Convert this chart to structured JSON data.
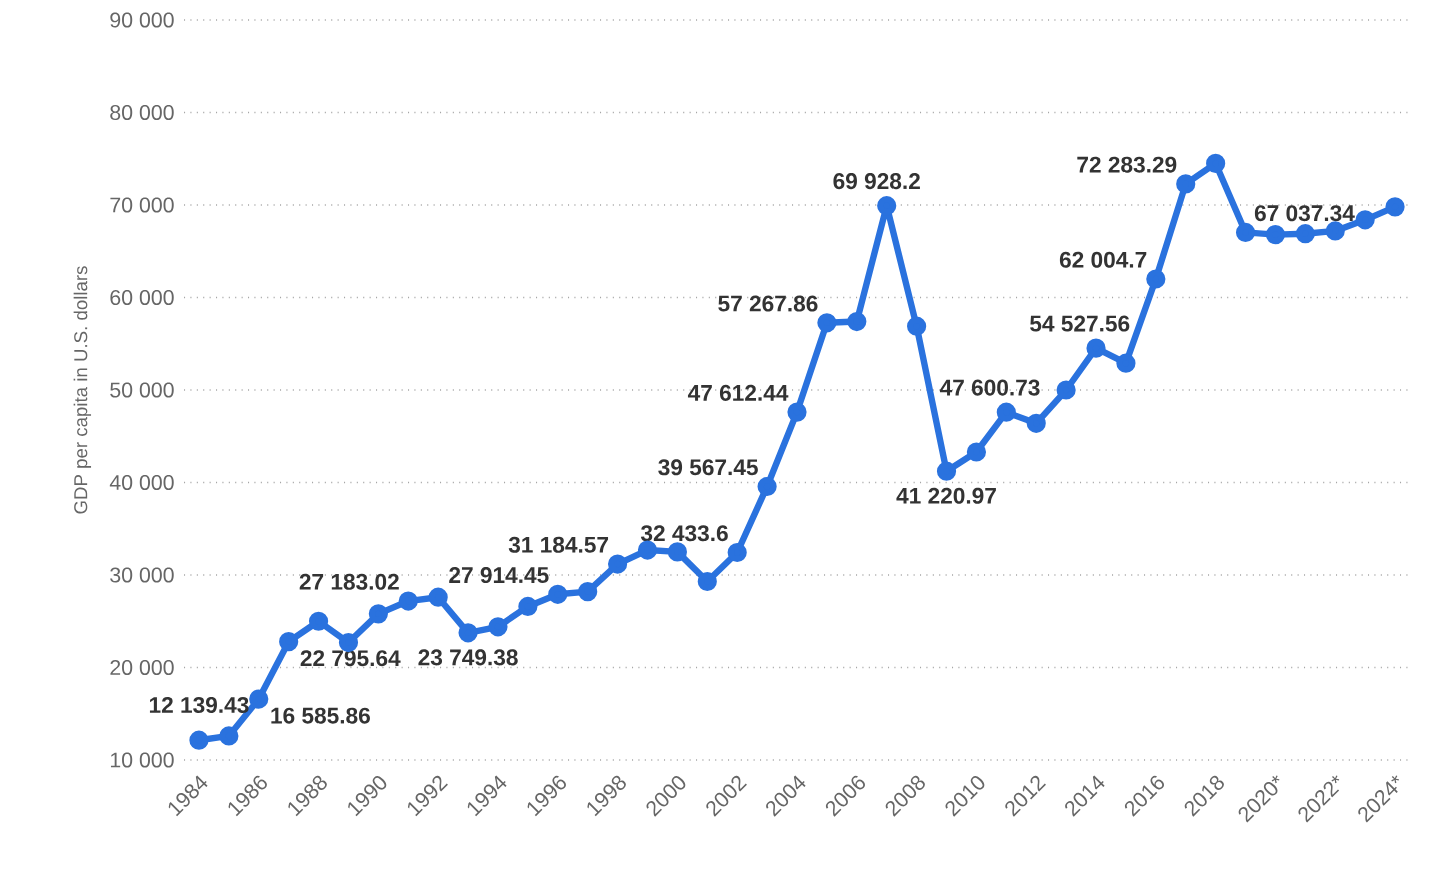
{
  "chart_data": {
    "type": "line",
    "ylabel": "GDP per capita in U.S. dollars",
    "x": [
      1984,
      1985,
      1986,
      1987,
      1988,
      1989,
      1990,
      1991,
      1992,
      1993,
      1994,
      1995,
      1996,
      1997,
      1998,
      1999,
      2000,
      2001,
      2002,
      2003,
      2004,
      2005,
      2006,
      2007,
      2008,
      2009,
      2010,
      2011,
      2012,
      2013,
      2014,
      2015,
      2016,
      2017,
      2018,
      2019,
      2020,
      2021,
      2022,
      2023,
      2024
    ],
    "series": [
      {
        "color": "#2a72de",
        "values": [
          12139.43,
          12600,
          16585.86,
          22795.64,
          25000,
          22700,
          25800,
          27183.02,
          27600,
          23749.38,
          24400,
          26600,
          27914.45,
          28200,
          31184.57,
          32700,
          32500,
          29300,
          32433.6,
          39567.45,
          47612.44,
          57267.86,
          57400,
          69928.2,
          56900,
          41220.97,
          43300,
          47600.73,
          46400,
          50000,
          54527.56,
          52900,
          62004.7,
          72283.29,
          74500,
          67037.34,
          66800,
          66900,
          67200,
          68400,
          69800
        ],
        "value_labels": [
          "12 139.43",
          null,
          "16 585.86",
          "22 795.64",
          null,
          null,
          null,
          "27 183.02",
          null,
          "23 749.38",
          null,
          null,
          "27 914.45",
          null,
          "31 184.57",
          null,
          null,
          null,
          "32 433.6",
          "39 567.45",
          "47 612.44",
          "57 267.86",
          null,
          "69 928.2",
          null,
          "41 220.97",
          null,
          "47 600.73",
          null,
          null,
          "54 527.56",
          null,
          "62 004.7",
          "72 283.29",
          null,
          "67 037.34",
          null,
          null,
          null,
          null,
          null
        ]
      }
    ],
    "xlim": [
      1983.5,
      2024.5
    ],
    "xticks": [
      1984,
      1986,
      1988,
      1990,
      1992,
      1994,
      1996,
      1998,
      2000,
      2002,
      2004,
      2006,
      2008,
      2010,
      2012,
      2014,
      2016,
      2018,
      {
        "value": 2020,
        "label": "2020*"
      },
      {
        "value": 2022,
        "label": "2022*"
      },
      {
        "value": 2024,
        "label": "2024*"
      }
    ],
    "ylim": [
      10000,
      90000
    ],
    "yticks": [
      {
        "value": 10000,
        "label": "10 000"
      },
      {
        "value": 20000,
        "label": "20 000"
      },
      {
        "value": 30000,
        "label": "30 000"
      },
      {
        "value": 40000,
        "label": "40 000"
      },
      {
        "value": 50000,
        "label": "50 000"
      },
      {
        "value": 60000,
        "label": "60 000"
      },
      {
        "value": 70000,
        "label": "70 000"
      },
      {
        "value": 80000,
        "label": "80 000"
      },
      {
        "value": 90000,
        "label": "90 000"
      }
    ],
    "grid": "y",
    "marker": "circle",
    "line_style": "solid"
  }
}
